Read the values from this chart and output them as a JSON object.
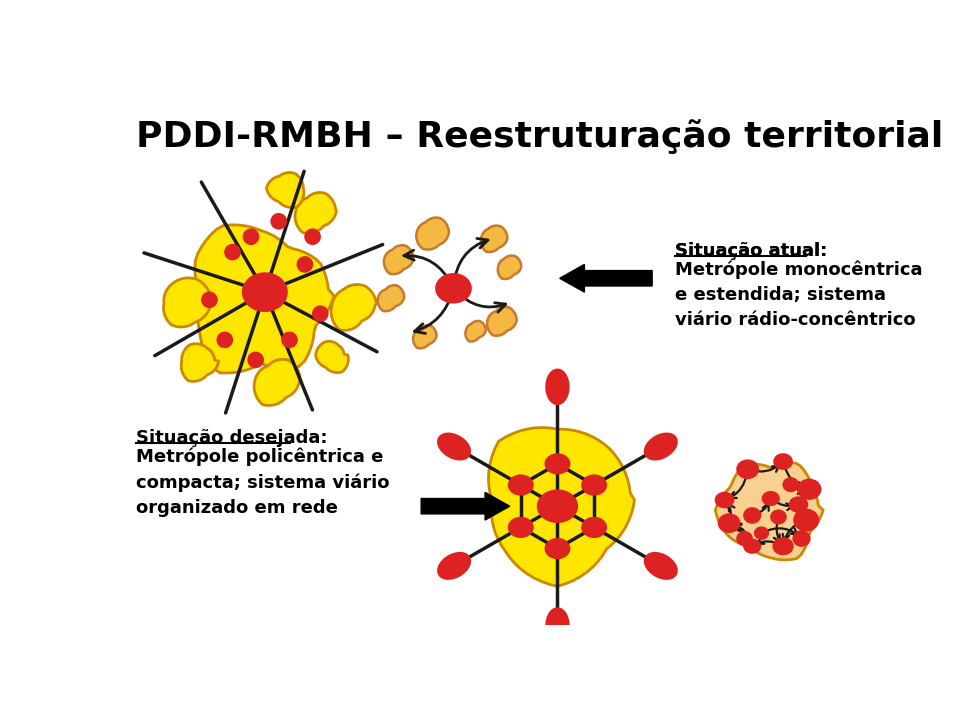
{
  "title": "PDDI-RMBH – Reestruturação territorial",
  "title_fontsize": 26,
  "title_fontweight": "bold",
  "bg_color": "#ffffff",
  "yellow_fill": "#FFE600",
  "orange_blob": "#F4B942",
  "red_fill": "#DD2222",
  "dark_line": "#1a1a1a",
  "text_atual_label": "Situação atual:",
  "text_atual_body": "Metrópole monocêntrica\ne estendida; sistema\nviário rádio-concêntrico",
  "text_desejada_label": "Situação desejada:",
  "text_desejada_body": "Metrópole policêntrica e\ncompacta; sistema viário\norganizado em rede"
}
